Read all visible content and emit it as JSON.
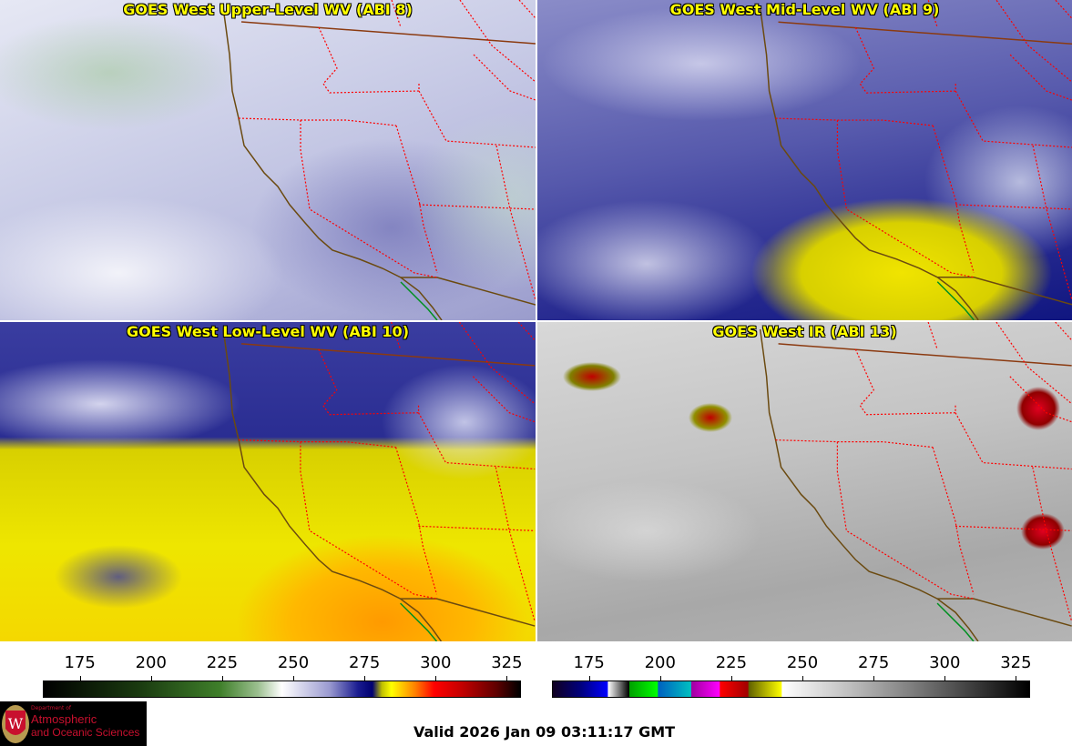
{
  "panels": [
    {
      "title": "GOES West Upper-Level WV (ABI 8)"
    },
    {
      "title": "GOES West Mid-Level WV (ABI 9)"
    },
    {
      "title": "GOES West Low-Level WV (ABI 10)"
    },
    {
      "title": "GOES West IR (ABI 13)"
    }
  ],
  "colorbars": [
    {
      "name": "water-vapor",
      "ticks": [
        "175",
        "200",
        "225",
        "250",
        "275",
        "300",
        "325"
      ],
      "range": [
        162,
        330
      ]
    },
    {
      "name": "infrared",
      "ticks": [
        "175",
        "200",
        "225",
        "250",
        "275",
        "300",
        "325"
      ],
      "range": [
        162,
        330
      ]
    }
  ],
  "logo": {
    "line1": "Department of",
    "line2": "Atmospheric",
    "line3": "and Oceanic Sciences",
    "seal_letter": "W"
  },
  "valid_time": "Valid 2026 Jan 09 03:11:17 GMT",
  "colors": {
    "title": "#ffff00",
    "state_borders": "#ff0000",
    "coastline": "#6b4a10",
    "brand": "#c8102e"
  }
}
